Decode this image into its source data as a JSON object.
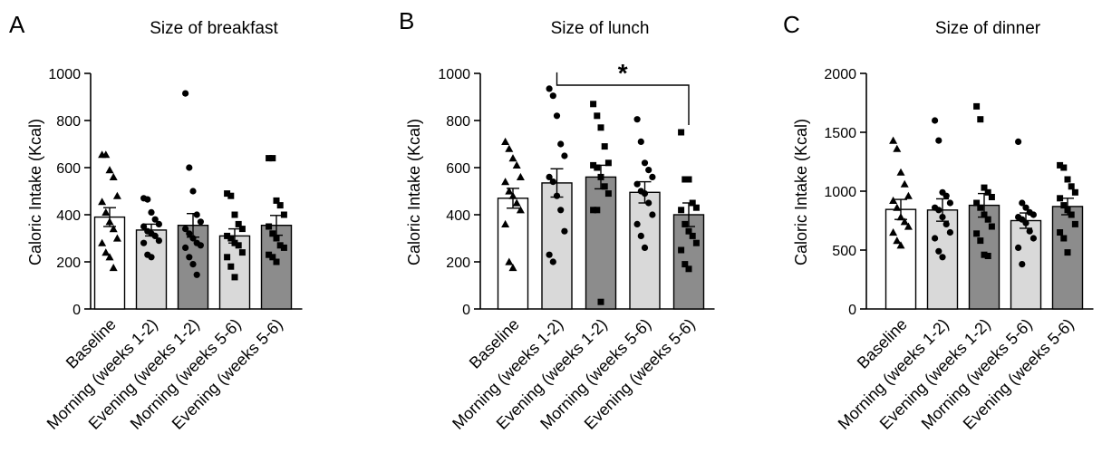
{
  "chart_data": [
    {
      "type": "bar",
      "panel": "A",
      "title": "Size of breakfast",
      "ylabel": "Caloric Intake (Kcal)",
      "xlabel": "",
      "ylim": [
        0,
        1000
      ],
      "yticks": [
        0,
        200,
        400,
        600,
        800,
        1000
      ],
      "categories": [
        "Baseline",
        "Morning (weeks 1-2)",
        "Evening (weeks 1-2)",
        "Morning (weeks 5-6)",
        "Evening (weeks 5-6)"
      ],
      "bar_colors": [
        "#ffffff",
        "#d9d9d9",
        "#8c8c8c",
        "#d9d9d9",
        "#8c8c8c"
      ],
      "marker_shapes": [
        "triangle",
        "circle",
        "circle",
        "square",
        "square"
      ],
      "values": [
        390,
        335,
        355,
        310,
        355
      ],
      "sem": [
        40,
        25,
        50,
        30,
        42
      ],
      "points": [
        [
          655,
          655,
          590,
          560,
          480,
          455,
          410,
          370,
          340,
          300,
          280,
          240,
          220,
          175
        ],
        [
          470,
          465,
          410,
          380,
          360,
          350,
          330,
          320,
          310,
          290,
          280,
          230,
          220
        ],
        [
          915,
          600,
          500,
          400,
          370,
          340,
          320,
          300,
          280,
          270,
          260,
          220,
          190,
          145
        ],
        [
          490,
          480,
          400,
          360,
          340,
          310,
          300,
          280,
          270,
          240,
          220,
          180,
          135
        ],
        [
          640,
          640,
          460,
          440,
          400,
          350,
          320,
          300,
          270,
          260,
          230,
          220,
          200
        ]
      ],
      "significance": null
    },
    {
      "type": "bar",
      "panel": "B",
      "title": "Size of lunch",
      "ylabel": "Caloric Intake (Kcal)",
      "xlabel": "",
      "ylim": [
        0,
        1000
      ],
      "yticks": [
        0,
        200,
        400,
        600,
        800,
        1000
      ],
      "categories": [
        "Baseline",
        "Morning (weeks 1-2)",
        "Evening (weeks 1-2)",
        "Morning (weeks 5-6)",
        "Evening (weeks 5-6)"
      ],
      "bar_colors": [
        "#ffffff",
        "#d9d9d9",
        "#8c8c8c",
        "#d9d9d9",
        "#8c8c8c"
      ],
      "marker_shapes": [
        "triangle",
        "circle",
        "square",
        "circle",
        "square"
      ],
      "values": [
        470,
        535,
        560,
        495,
        400
      ],
      "sem": [
        42,
        60,
        50,
        45,
        50
      ],
      "points": [
        [
          710,
          680,
          640,
          610,
          560,
          540,
          500,
          480,
          450,
          420,
          360,
          200,
          175
        ],
        [
          935,
          905,
          820,
          700,
          650,
          560,
          540,
          480,
          420,
          330,
          230,
          200
        ],
        [
          870,
          820,
          770,
          690,
          620,
          610,
          600,
          560,
          520,
          490,
          420,
          420,
          30
        ],
        [
          805,
          710,
          620,
          590,
          560,
          530,
          500,
          490,
          450,
          400,
          360,
          310,
          260
        ],
        [
          750,
          550,
          550,
          450,
          430,
          420,
          360,
          330,
          310,
          280,
          250,
          190,
          170
        ]
      ],
      "significance": {
        "from": 1,
        "to": 4,
        "label": "*",
        "value": 1000
      }
    },
    {
      "type": "bar",
      "panel": "C",
      "title": "Size of dinner",
      "ylabel": "Caloric Intake (Kcal)",
      "xlabel": "",
      "ylim": [
        0,
        2000
      ],
      "yticks": [
        0,
        500,
        1000,
        1500,
        2000
      ],
      "categories": [
        "Baseline",
        "Morning (weeks 1-2)",
        "Evening (weeks 1-2)",
        "Morning (weeks 5-6)",
        "Evening (weeks 5-6)"
      ],
      "bar_colors": [
        "#ffffff",
        "#d9d9d9",
        "#8c8c8c",
        "#d9d9d9",
        "#8c8c8c"
      ],
      "marker_shapes": [
        "triangle",
        "circle",
        "square",
        "circle",
        "square"
      ],
      "values": [
        845,
        840,
        880,
        750,
        870
      ],
      "sem": [
        85,
        95,
        100,
        65,
        70
      ],
      "points": [
        [
          1430,
          1360,
          1160,
          1060,
          960,
          920,
          860,
          780,
          740,
          700,
          650,
          580,
          540
        ],
        [
          1600,
          1430,
          990,
          960,
          900,
          860,
          840,
          780,
          720,
          650,
          600,
          490,
          440
        ],
        [
          1720,
          1610,
          1030,
          990,
          950,
          900,
          860,
          800,
          760,
          700,
          640,
          580,
          460,
          450
        ],
        [
          1420,
          900,
          860,
          820,
          800,
          780,
          760,
          730,
          660,
          600,
          520,
          380
        ],
        [
          1220,
          1200,
          1100,
          1040,
          990,
          940,
          880,
          840,
          800,
          720,
          650,
          600,
          480
        ]
      ],
      "significance": null
    }
  ]
}
